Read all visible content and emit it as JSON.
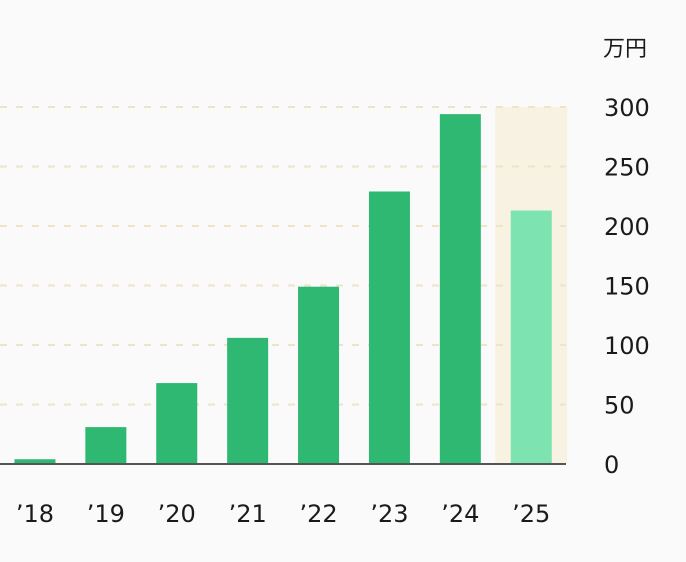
{
  "chart_data": {
    "type": "bar",
    "categories": [
      "’18",
      "’19",
      "’20",
      "’21",
      "’22",
      "’23",
      "’24",
      "’25"
    ],
    "values": [
      4,
      31,
      68,
      106,
      149,
      229,
      294,
      213
    ],
    "unit": "万円",
    "ylim": [
      0,
      300
    ],
    "yticks": [
      "300",
      "250",
      "200",
      "150",
      "100",
      "50",
      "0"
    ],
    "ytick_values": [
      300,
      250,
      200,
      150,
      100,
      50,
      0
    ],
    "grid": true,
    "highlighted_category": "’25",
    "colors": {
      "bar": "#2eb872",
      "highlight_bar": "#7de3b0",
      "highlight_band": "#f7f2e2",
      "grid": "#efe3c8",
      "axis": "#555555",
      "text": "#1a1a1a"
    }
  }
}
